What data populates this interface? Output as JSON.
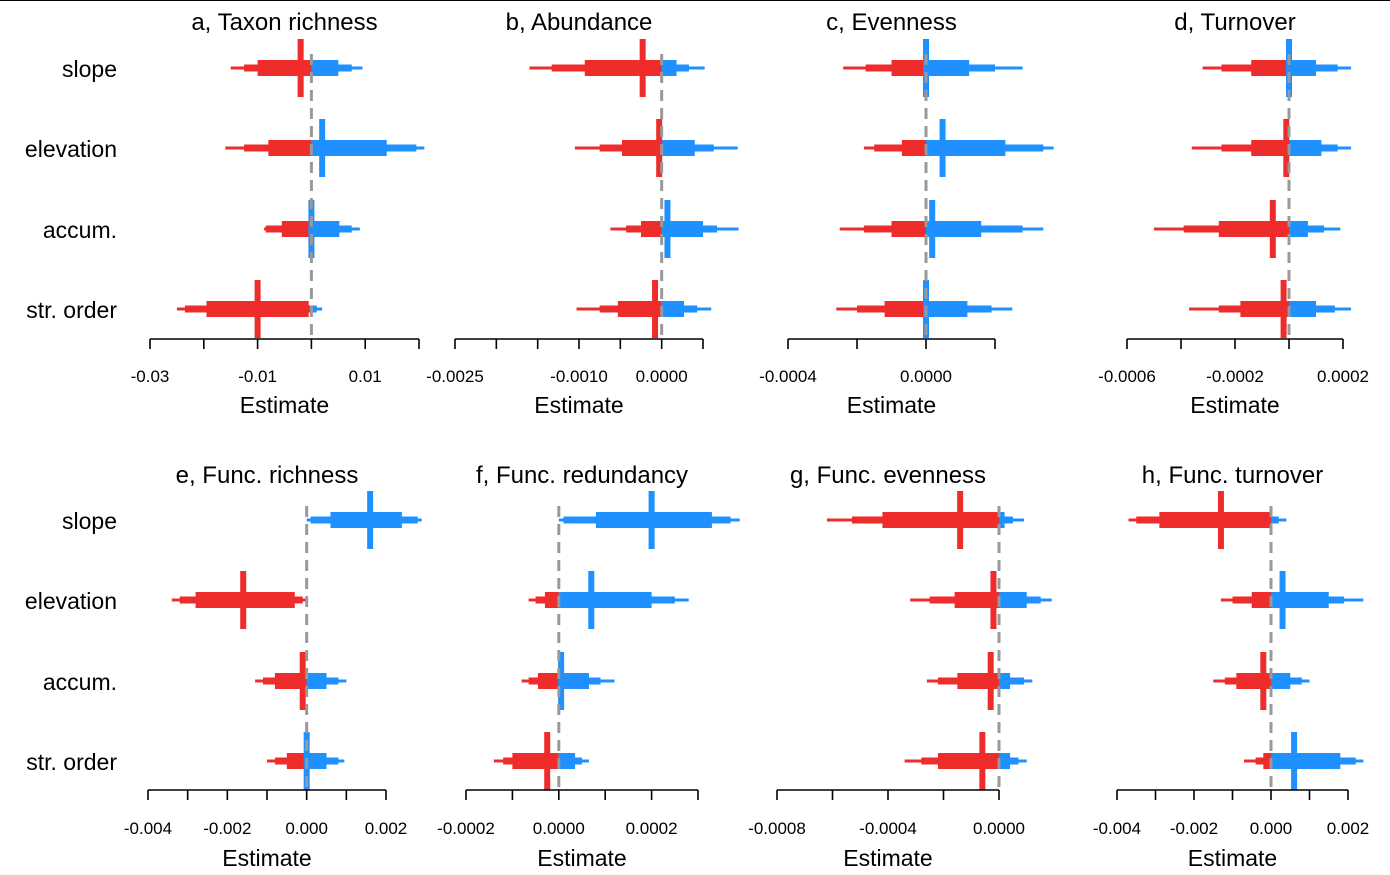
{
  "rows": [
    "slope",
    "elevation",
    "accum.",
    "str. order"
  ],
  "xlabel": "Estimate",
  "colors": {
    "negative": "#ee2c2c",
    "positive": "#1e90ff",
    "zero_line": "#999999",
    "axis": "#000000"
  },
  "chart_data": [
    {
      "type": "interval",
      "title": "a, Taxon richness",
      "ticks": [
        -0.03,
        -0.02,
        -0.01,
        0,
        0.01,
        0.02
      ],
      "tick_labels": [
        "-0.03",
        "",
        "-0.01",
        "",
        "0.01",
        ""
      ],
      "xlim": [
        -0.03,
        0.02
      ],
      "estimates": [
        {
          "label": "slope",
          "median": -0.002,
          "q25": -0.01,
          "q75": 0.005,
          "q10": -0.0125,
          "q90": 0.0075,
          "q025": -0.015,
          "q975": 0.0095
        },
        {
          "label": "elevation",
          "median": 0.002,
          "q25": -0.008,
          "q75": 0.014,
          "q10": -0.0125,
          "q90": 0.0195,
          "q025": -0.016,
          "q975": 0.021
        },
        {
          "label": "accum.",
          "median": 0.0,
          "q25": -0.0055,
          "q75": 0.0052,
          "q10": -0.0085,
          "q90": 0.0075,
          "q025": -0.0088,
          "q975": 0.009
        },
        {
          "label": "str. order",
          "median": -0.01,
          "q25": -0.0195,
          "q75": -0.0005,
          "q10": -0.0235,
          "q90": 0.001,
          "q025": -0.025,
          "q975": 0.002
        }
      ]
    },
    {
      "type": "interval",
      "title": "b, Abundance",
      "ticks": [
        -0.0025,
        -0.002,
        -0.0015,
        -0.001,
        -0.0005,
        0.0,
        0.0005
      ],
      "tick_labels": [
        "-0.0025",
        "",
        "",
        "-0.0010",
        "",
        "0.0000",
        ""
      ],
      "xlim": [
        -0.0025,
        0.0005
      ],
      "estimates": [
        {
          "label": "slope",
          "median": -0.00023,
          "q25": -0.00093,
          "q75": 0.00018,
          "q10": -0.00133,
          "q90": 0.00033,
          "q025": -0.0016,
          "q975": 0.00052
        },
        {
          "label": "elevation",
          "median": -3e-05,
          "q25": -0.00048,
          "q75": 0.0004,
          "q10": -0.00075,
          "q90": 0.00063,
          "q025": -0.00105,
          "q975": 0.00092
        },
        {
          "label": "accum.",
          "median": 7e-05,
          "q25": -0.00025,
          "q75": 0.0005,
          "q10": -0.00043,
          "q90": 0.00067,
          "q025": -0.00062,
          "q975": 0.00093
        },
        {
          "label": "str. order",
          "median": -8e-05,
          "q25": -0.00053,
          "q75": 0.00027,
          "q10": -0.00075,
          "q90": 0.00043,
          "q025": -0.00103,
          "q975": 0.0006
        }
      ]
    },
    {
      "type": "interval",
      "title": "c, Evenness",
      "ticks": [
        -0.0004,
        -0.0002,
        0.0,
        0.0002
      ],
      "tick_labels": [
        "-0.0004",
        "",
        "0.0000",
        ""
      ],
      "xlim": [
        -0.0004,
        0.0002
      ],
      "estimates": [
        {
          "label": "slope",
          "median": 0.0,
          "q25": -0.0001,
          "q75": 0.000125,
          "q10": -0.000175,
          "q90": 0.0002,
          "q025": -0.00024,
          "q975": 0.00028
        },
        {
          "label": "elevation",
          "median": 4.8e-05,
          "q25": -7e-05,
          "q75": 0.00023,
          "q10": -0.00015,
          "q90": 0.00034,
          "q025": -0.00018,
          "q975": 0.00037
        },
        {
          "label": "accum.",
          "median": 1.8e-05,
          "q25": -0.0001,
          "q75": 0.00016,
          "q10": -0.00018,
          "q90": 0.00028,
          "q025": -0.00025,
          "q975": 0.00034
        },
        {
          "label": "str. order",
          "median": 0.0,
          "q25": -0.00012,
          "q75": 0.00012,
          "q10": -0.0002,
          "q90": 0.00019,
          "q025": -0.00026,
          "q975": 0.00025
        }
      ]
    },
    {
      "type": "interval",
      "title": "d, Turnover",
      "ticks": [
        -0.0006,
        -0.0004,
        -0.0002,
        0.0,
        0.0002
      ],
      "tick_labels": [
        "-0.0006",
        "",
        "-0.0002",
        "",
        "0.0002"
      ],
      "xlim": [
        -0.0006,
        0.0002
      ],
      "estimates": [
        {
          "label": "slope",
          "median": 0.0,
          "q25": -0.00014,
          "q75": 0.0001,
          "q10": -0.00025,
          "q90": 0.00018,
          "q025": -0.00032,
          "q975": 0.00023
        },
        {
          "label": "elevation",
          "median": -1e-05,
          "q25": -0.00014,
          "q75": 0.00012,
          "q10": -0.00025,
          "q90": 0.00018,
          "q025": -0.00036,
          "q975": 0.00023
        },
        {
          "label": "accum.",
          "median": -6e-05,
          "q25": -0.00026,
          "q75": 7e-05,
          "q10": -0.00039,
          "q90": 0.00013,
          "q025": -0.0005,
          "q975": 0.00019
        },
        {
          "label": "str. order",
          "median": -2e-05,
          "q25": -0.00018,
          "q75": 0.0001,
          "q10": -0.00026,
          "q90": 0.00017,
          "q025": -0.00037,
          "q975": 0.00023
        }
      ]
    },
    {
      "type": "interval",
      "title": "e, Func. richness",
      "ticks": [
        -0.004,
        -0.003,
        -0.002,
        -0.001,
        0.0,
        0.001,
        0.002
      ],
      "tick_labels": [
        "-0.004",
        "",
        "-0.002",
        "",
        "0.000",
        "",
        "0.002"
      ],
      "xlim": [
        -0.004,
        0.002
      ],
      "estimates": [
        {
          "label": "slope",
          "median": 0.0016,
          "q25": 0.0006,
          "q75": 0.0024,
          "q10": 0.0001,
          "q90": 0.0028,
          "q025": 0.0,
          "q975": 0.0029
        },
        {
          "label": "elevation",
          "median": -0.0016,
          "q25": -0.0028,
          "q75": -0.0003,
          "q10": -0.0032,
          "q90": -0.0001,
          "q025": -0.0034,
          "q975": 0.0
        },
        {
          "label": "accum.",
          "median": -0.0001,
          "q25": -0.0008,
          "q75": 0.0005,
          "q10": -0.0011,
          "q90": 0.0008,
          "q025": -0.0013,
          "q975": 0.001
        },
        {
          "label": "str. order",
          "median": 0.0,
          "q25": -0.0005,
          "q75": 0.0005,
          "q10": -0.0008,
          "q90": 0.0008,
          "q025": -0.001,
          "q975": 0.00095
        }
      ]
    },
    {
      "type": "interval",
      "title": "f, Func. redundancy",
      "ticks": [
        -0.0002,
        -0.0001,
        0.0,
        0.0001,
        0.0002,
        0.0003
      ],
      "tick_labels": [
        "-0.0002",
        "",
        "0.0000",
        "",
        "0.0002",
        ""
      ],
      "xlim": [
        -0.0002,
        0.0003
      ],
      "estimates": [
        {
          "label": "slope",
          "median": 0.0002,
          "q25": 8e-05,
          "q75": 0.00033,
          "q10": 1e-05,
          "q90": 0.00037,
          "q025": 0.0,
          "q975": 0.00039
        },
        {
          "label": "elevation",
          "median": 7e-05,
          "q25": -3e-05,
          "q75": 0.0002,
          "q10": -5e-05,
          "q90": 0.00025,
          "q025": -6.5e-05,
          "q975": 0.00028
        },
        {
          "label": "accum.",
          "median": 5e-06,
          "q25": -4.5e-05,
          "q75": 6.5e-05,
          "q10": -6.5e-05,
          "q90": 9e-05,
          "q025": -8e-05,
          "q975": 0.00012
        },
        {
          "label": "str. order",
          "median": -2.5e-05,
          "q25": -0.0001,
          "q75": 3.5e-05,
          "q10": -0.00012,
          "q90": 5e-05,
          "q025": -0.00014,
          "q975": 6.5e-05
        }
      ]
    },
    {
      "type": "interval",
      "title": "g, Func. evenness",
      "ticks": [
        -0.0008,
        -0.0006,
        -0.0004,
        -0.0002,
        0.0
      ],
      "tick_labels": [
        "-0.0008",
        "",
        "-0.0004",
        "",
        "0.0000"
      ],
      "xlim": [
        -0.0008,
        0.0
      ],
      "estimates": [
        {
          "label": "slope",
          "median": -0.00014,
          "q25": -0.00042,
          "q75": 2e-05,
          "q10": -0.00053,
          "q90": 5e-05,
          "q025": -0.00062,
          "q975": 9e-05
        },
        {
          "label": "elevation",
          "median": -2e-05,
          "q25": -0.00016,
          "q75": 0.0001,
          "q10": -0.00025,
          "q90": 0.00015,
          "q025": -0.00032,
          "q975": 0.00019
        },
        {
          "label": "accum.",
          "median": -3e-05,
          "q25": -0.00015,
          "q75": 4e-05,
          "q10": -0.00022,
          "q90": 9e-05,
          "q025": -0.00026,
          "q975": 0.00012
        },
        {
          "label": "str. order",
          "median": -6e-05,
          "q25": -0.00022,
          "q75": 4e-05,
          "q10": -0.00028,
          "q90": 7e-05,
          "q025": -0.00034,
          "q975": 0.0001
        }
      ]
    },
    {
      "type": "interval",
      "title": "h, Func. turnover",
      "ticks": [
        -0.004,
        -0.003,
        -0.002,
        -0.001,
        0.0,
        0.001,
        0.002
      ],
      "tick_labels": [
        "-0.004",
        "",
        "-0.002",
        "",
        "0.000",
        "",
        "0.002"
      ],
      "xlim": [
        -0.004,
        0.002
      ],
      "estimates": [
        {
          "label": "slope",
          "median": -0.0013,
          "q25": -0.0029,
          "q75": 0.0,
          "q10": -0.0035,
          "q90": 0.0002,
          "q025": -0.0037,
          "q975": 0.0004
        },
        {
          "label": "elevation",
          "median": 0.0003,
          "q25": -0.0005,
          "q75": 0.0015,
          "q10": -0.001,
          "q90": 0.0019,
          "q025": -0.0013,
          "q975": 0.0024
        },
        {
          "label": "accum.",
          "median": -0.0002,
          "q25": -0.0009,
          "q75": 0.0005,
          "q10": -0.0012,
          "q90": 0.0008,
          "q025": -0.0015,
          "q975": 0.001
        },
        {
          "label": "str. order",
          "median": 0.0006,
          "q25": -0.0002,
          "q75": 0.0018,
          "q10": -0.0004,
          "q90": 0.0022,
          "q025": -0.0007,
          "q975": 0.0024
        }
      ]
    }
  ]
}
